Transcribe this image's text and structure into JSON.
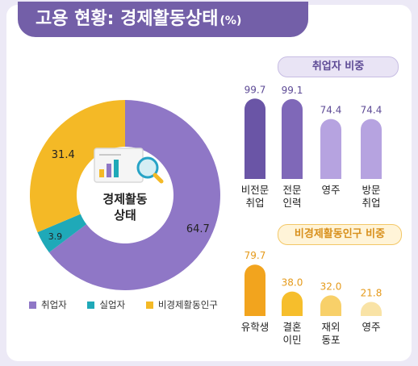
{
  "title": "고용 현황: 경제활동상태",
  "title_unit": "(%)",
  "colors": {
    "employed": "#8f77c6",
    "unemployed": "#1fa9b8",
    "inactive": "#f4b926",
    "header": "#735fa8"
  },
  "center_icon": "chart-magnifier-icon",
  "chart_data": [
    {
      "type": "pie",
      "center_label": [
        "경제활동",
        "상태"
      ],
      "categories": [
        "취업자",
        "실업자",
        "비경제활동인구"
      ],
      "values": [
        64.7,
        3.9,
        31.4
      ]
    },
    {
      "type": "bar",
      "title": "취업자 비중",
      "categories": [
        [
          "비전문",
          "취업"
        ],
        [
          "전문",
          "인력"
        ],
        [
          "영주"
        ],
        [
          "방문",
          "취업"
        ]
      ],
      "values": [
        99.7,
        99.1,
        74.4,
        74.4
      ],
      "ylim": [
        0,
        100
      ]
    },
    {
      "type": "bar",
      "title": "비경제활동인구 비중",
      "categories": [
        [
          "유학생"
        ],
        [
          "결혼",
          "이민"
        ],
        [
          "재외",
          "동포"
        ],
        [
          "영주"
        ]
      ],
      "values": [
        79.7,
        38.0,
        32.0,
        21.8
      ],
      "ylim": [
        0,
        100
      ]
    }
  ]
}
